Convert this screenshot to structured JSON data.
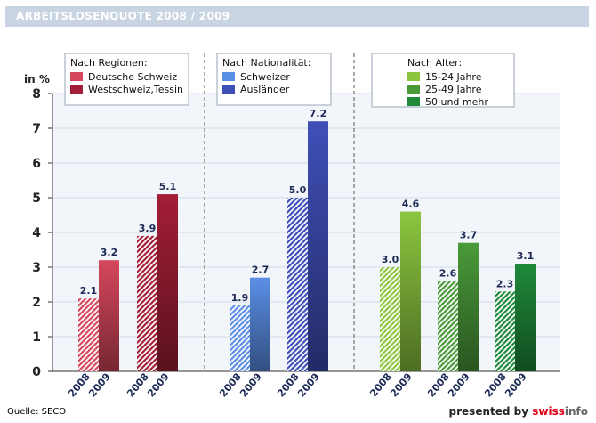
{
  "title": "ARBEITSLOSENQUOTE 2008 / 2009",
  "source": "Quelle: SECO",
  "presented_by": {
    "prefix": "presented by ",
    "brand_a": "swiss",
    "brand_b": "info"
  },
  "colors": {
    "title_bg": "#c9d4e2",
    "plot_bg": "#f2f6fa",
    "deutsche_schweiz": "#d6475c",
    "westschweiz_tessin": "#a31e37",
    "schweizer": "#5b8fe6",
    "auslaender": "#3f4fb8",
    "age_15_24": "#8cc63f",
    "age_25_49": "#4a9a3a",
    "age_50_plus": "#1f8a3a"
  },
  "chart_data": {
    "type": "bar",
    "ylabel": "in %",
    "ylim": [
      0,
      8
    ],
    "yticks": [
      0,
      1,
      2,
      3,
      4,
      5,
      6,
      7,
      8
    ],
    "grid": true,
    "groups": [
      {
        "legend_title": "Nach Regionen:",
        "series": [
          {
            "name": "Deutsche Schweiz",
            "color": "#d6475c",
            "values": {
              "2008": 2.1,
              "2009": 3.2
            },
            "labels": [
              "2.1",
              "3.2"
            ]
          },
          {
            "name": "Westschweiz,Tessin",
            "color": "#a31e37",
            "values": {
              "2008": 3.9,
              "2009": 5.1
            },
            "labels": [
              "3.9",
              "5.1"
            ]
          }
        ]
      },
      {
        "legend_title": "Nach Nationalität:",
        "series": [
          {
            "name": "Schweizer",
            "color": "#5b8fe6",
            "values": {
              "2008": 1.9,
              "2009": 2.7
            },
            "labels": [
              "1.9",
              "2.7"
            ]
          },
          {
            "name": "Ausländer",
            "color": "#3f4fb8",
            "values": {
              "2008": 5.0,
              "2009": 7.2
            },
            "labels": [
              "5.0",
              "7.2"
            ]
          }
        ]
      },
      {
        "legend_title": "Nach Alter:",
        "series": [
          {
            "name": "15-24 Jahre",
            "color": "#8cc63f",
            "values": {
              "2008": 3.0,
              "2009": 4.6
            },
            "labels": [
              "3.0",
              "4.6"
            ]
          },
          {
            "name": "25-49 Jahre",
            "color": "#4a9a3a",
            "values": {
              "2008": 2.6,
              "2009": 3.7
            },
            "labels": [
              "2.6",
              "3.7"
            ]
          },
          {
            "name": "50 und mehr",
            "color": "#1f8a3a",
            "values": {
              "2008": 2.3,
              "2009": 3.1
            },
            "labels": [
              "2.3",
              "3.1"
            ]
          }
        ]
      }
    ],
    "year_labels": [
      "2008",
      "2009"
    ]
  }
}
